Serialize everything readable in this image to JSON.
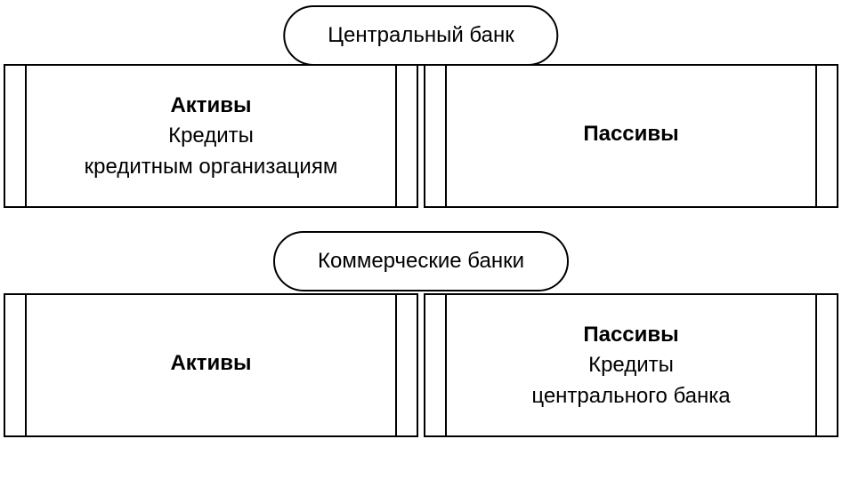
{
  "diagram": {
    "type": "flowchart",
    "background_color": "#ffffff",
    "border_color": "#000000",
    "font_family": "Arial",
    "title_fontsize": 24,
    "body_fontsize": 24,
    "sections": [
      {
        "header": "Центральный банк",
        "left": {
          "title": "Активы",
          "sub1": "Кредиты",
          "sub2": "кредитным организациям"
        },
        "right": {
          "title": "Пассивы",
          "sub1": "",
          "sub2": ""
        }
      },
      {
        "header": "Коммерческие банки",
        "left": {
          "title": "Активы",
          "sub1": "",
          "sub2": ""
        },
        "right": {
          "title": "Пассивы",
          "sub1": "Кредиты",
          "sub2": "центрального банка"
        }
      }
    ]
  }
}
